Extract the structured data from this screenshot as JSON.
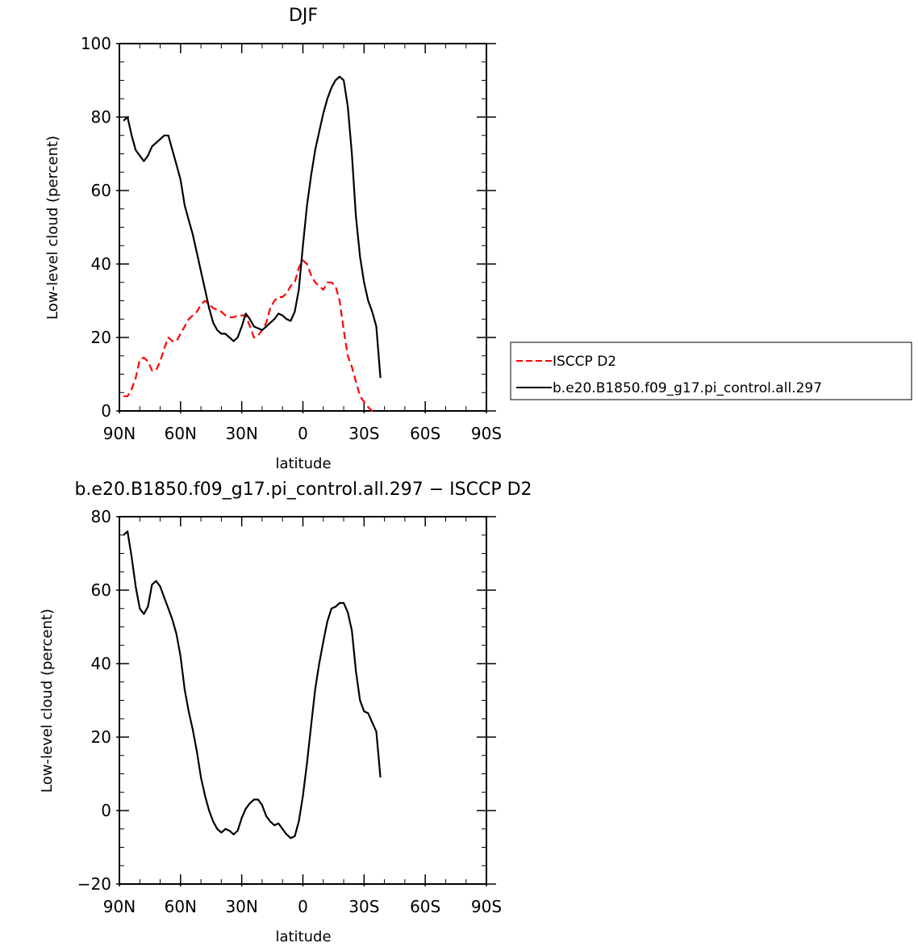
{
  "chart_data": [
    {
      "type": "line",
      "title": "DJF",
      "xlabel": "latitude",
      "ylabel": "Low-level cloud (percent)",
      "xlim": [
        90,
        -90
      ],
      "ylim": [
        0,
        100
      ],
      "x_ticks": [
        90,
        60,
        30,
        0,
        -30,
        -60,
        -90
      ],
      "x_tick_labels": [
        "90N",
        "60N",
        "30N",
        "0",
        "30S",
        "60S",
        "90S"
      ],
      "y_ticks": [
        0,
        20,
        40,
        60,
        80,
        100
      ],
      "y_tick_labels": [
        "0",
        "20",
        "40",
        "60",
        "80",
        "100"
      ],
      "legend": "right",
      "series": [
        {
          "name": "ISCCP D2",
          "color": "#ff0000",
          "dash": "dashed",
          "points": [
            [
              88,
              4
            ],
            [
              86,
              4
            ],
            [
              84,
              6
            ],
            [
              82,
              9
            ],
            [
              80,
              14
            ],
            [
              78,
              14.5
            ],
            [
              76,
              13.5
            ],
            [
              74,
              11
            ],
            [
              72,
              11
            ],
            [
              70,
              13.5
            ],
            [
              68,
              17
            ],
            [
              66,
              20
            ],
            [
              64,
              19
            ],
            [
              62,
              19
            ],
            [
              60,
              21
            ],
            [
              58,
              23
            ],
            [
              56,
              25
            ],
            [
              54,
              26
            ],
            [
              52,
              27
            ],
            [
              50,
              29
            ],
            [
              48,
              30
            ],
            [
              46,
              29
            ],
            [
              44,
              28
            ],
            [
              42,
              27.5
            ],
            [
              40,
              27
            ],
            [
              38,
              26
            ],
            [
              36,
              25.5
            ],
            [
              34,
              25.5
            ],
            [
              32,
              26
            ],
            [
              30,
              26
            ],
            [
              28,
              26
            ],
            [
              26,
              23
            ],
            [
              24,
              20
            ],
            [
              22,
              20.5
            ],
            [
              20,
              22
            ],
            [
              18,
              24
            ],
            [
              16,
              28
            ],
            [
              14,
              30
            ],
            [
              12,
              31
            ],
            [
              10,
              31
            ],
            [
              8,
              32
            ],
            [
              6,
              34
            ],
            [
              4,
              35
            ],
            [
              2,
              39
            ],
            [
              0,
              41
            ],
            [
              -2,
              40
            ],
            [
              -4,
              37
            ],
            [
              -6,
              35
            ],
            [
              -8,
              34
            ],
            [
              -10,
              33
            ],
            [
              -12,
              35
            ],
            [
              -14,
              35
            ],
            [
              -16,
              34
            ],
            [
              -18,
              30
            ],
            [
              -20,
              22
            ],
            [
              -22,
              15
            ],
            [
              -24,
              12
            ],
            [
              -26,
              8
            ],
            [
              -28,
              4
            ],
            [
              -30,
              2.5
            ],
            [
              -32,
              1
            ],
            [
              -34,
              0
            ],
            [
              -35,
              -0.5
            ]
          ]
        },
        {
          "name": "b.e20.B1850.f09_g17.pi_control.all.297",
          "color": "#000000",
          "dash": "solid",
          "points": [
            [
              88,
              79
            ],
            [
              86,
              80
            ],
            [
              84,
              75
            ],
            [
              82,
              71
            ],
            [
              80,
              69.5
            ],
            [
              78,
              68
            ],
            [
              76,
              69.5
            ],
            [
              74,
              72
            ],
            [
              72,
              73
            ],
            [
              70,
              74
            ],
            [
              68,
              75
            ],
            [
              66,
              75
            ],
            [
              64,
              71
            ],
            [
              62,
              67
            ],
            [
              60,
              63
            ],
            [
              58,
              56
            ],
            [
              56,
              52
            ],
            [
              54,
              48
            ],
            [
              52,
              43
            ],
            [
              50,
              38
            ],
            [
              48,
              33
            ],
            [
              46,
              28
            ],
            [
              44,
              24
            ],
            [
              42,
              22
            ],
            [
              40,
              21
            ],
            [
              38,
              21
            ],
            [
              36,
              20
            ],
            [
              34,
              19
            ],
            [
              32,
              20
            ],
            [
              30,
              23
            ],
            [
              28,
              26.5
            ],
            [
              26,
              25
            ],
            [
              24,
              23
            ],
            [
              22,
              22.5
            ],
            [
              20,
              22
            ],
            [
              18,
              23
            ],
            [
              16,
              24
            ],
            [
              14,
              25
            ],
            [
              12,
              26.5
            ],
            [
              10,
              26
            ],
            [
              8,
              25
            ],
            [
              6,
              24.5
            ],
            [
              4,
              27
            ],
            [
              2,
              33
            ],
            [
              0,
              45
            ],
            [
              -2,
              56
            ],
            [
              -4,
              64
            ],
            [
              -6,
              71
            ],
            [
              -8,
              76
            ],
            [
              -10,
              81
            ],
            [
              -12,
              85
            ],
            [
              -14,
              88
            ],
            [
              -16,
              90
            ],
            [
              -18,
              91
            ],
            [
              -20,
              90
            ],
            [
              -22,
              83
            ],
            [
              -24,
              70
            ],
            [
              -26,
              53
            ],
            [
              -28,
              42
            ],
            [
              -30,
              35
            ],
            [
              -32,
              30
            ],
            [
              -34,
              27
            ],
            [
              -36,
              23
            ],
            [
              -38,
              9
            ]
          ]
        }
      ]
    },
    {
      "type": "line",
      "title": "b.e20.B1850.f09_g17.pi_control.all.297 − ISCCP D2",
      "xlabel": "latitude",
      "ylabel": "Low-level cloud (percent)",
      "xlim": [
        90,
        -90
      ],
      "ylim": [
        -20,
        80
      ],
      "x_ticks": [
        90,
        60,
        30,
        0,
        -30,
        -60,
        -90
      ],
      "x_tick_labels": [
        "90N",
        "60N",
        "30N",
        "0",
        "30S",
        "60S",
        "90S"
      ],
      "y_ticks": [
        -20,
        0,
        20,
        40,
        60,
        80
      ],
      "y_tick_labels": [
        "−20",
        "0",
        "20",
        "40",
        "60",
        "80"
      ],
      "series": [
        {
          "color": "#000000",
          "dash": "solid",
          "points": [
            [
              88,
              75
            ],
            [
              86,
              76
            ],
            [
              84,
              69
            ],
            [
              82,
              61
            ],
            [
              80,
              55
            ],
            [
              78,
              53.5
            ],
            [
              76,
              55.5
            ],
            [
              74,
              61.5
            ],
            [
              72,
              62.5
            ],
            [
              70,
              61
            ],
            [
              68,
              58
            ],
            [
              66,
              55
            ],
            [
              64,
              52
            ],
            [
              62,
              48
            ],
            [
              60,
              42
            ],
            [
              58,
              33
            ],
            [
              56,
              27
            ],
            [
              54,
              22
            ],
            [
              52,
              16
            ],
            [
              50,
              9
            ],
            [
              48,
              4
            ],
            [
              46,
              0
            ],
            [
              44,
              -3
            ],
            [
              42,
              -5
            ],
            [
              40,
              -6
            ],
            [
              38,
              -5
            ],
            [
              36,
              -5.5
            ],
            [
              34,
              -6.5
            ],
            [
              32,
              -5.5
            ],
            [
              30,
              -2
            ],
            [
              28,
              0.5
            ],
            [
              26,
              2
            ],
            [
              24,
              3
            ],
            [
              22,
              3
            ],
            [
              20,
              1.5
            ],
            [
              18,
              -1.5
            ],
            [
              16,
              -3
            ],
            [
              14,
              -4
            ],
            [
              12,
              -3.5
            ],
            [
              10,
              -5
            ],
            [
              8,
              -6.5
            ],
            [
              6,
              -7.5
            ],
            [
              4,
              -7
            ],
            [
              2,
              -3
            ],
            [
              0,
              4
            ],
            [
              -2,
              13
            ],
            [
              -4,
              23
            ],
            [
              -6,
              33
            ],
            [
              -8,
              40
            ],
            [
              -10,
              46
            ],
            [
              -12,
              51.5
            ],
            [
              -14,
              55
            ],
            [
              -16,
              55.5
            ],
            [
              -18,
              56.5
            ],
            [
              -20,
              56.5
            ],
            [
              -22,
              54
            ],
            [
              -24,
              49
            ],
            [
              -26,
              38
            ],
            [
              -28,
              30
            ],
            [
              -30,
              27
            ],
            [
              -32,
              26.5
            ],
            [
              -34,
              24
            ],
            [
              -36,
              21.5
            ],
            [
              -38,
              9
            ]
          ]
        }
      ]
    }
  ]
}
